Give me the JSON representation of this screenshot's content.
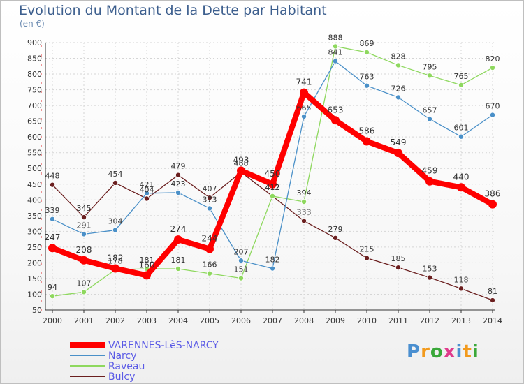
{
  "header": {
    "title": "Evolution du Montant de la Dette par Habitant",
    "subtitle": "(en €)"
  },
  "logo": {
    "text": "Proxiti"
  },
  "chart_data": {
    "type": "line",
    "title": "Evolution du Montant de la Dette par Habitant",
    "subtitle": "(en €)",
    "xlabel": "",
    "ylabel": "",
    "categories": [
      "2000",
      "2001",
      "2002",
      "2003",
      "2004",
      "2005",
      "2006",
      "2007",
      "2008",
      "2009",
      "2010",
      "2011",
      "2012",
      "2013",
      "2014"
    ],
    "ylim": [
      50,
      900
    ],
    "yticks": [
      50,
      100,
      150,
      200,
      250,
      300,
      350,
      400,
      450,
      500,
      550,
      600,
      650,
      700,
      750,
      800,
      850,
      900
    ],
    "grid": true,
    "legend_position": "bottom-left",
    "series": [
      {
        "name": "Bulcy",
        "color": "#6b1f1f",
        "values": [
          448,
          345,
          454,
          404,
          479,
          407,
          488,
          412,
          333,
          279,
          215,
          185,
          153,
          118,
          81
        ],
        "labels": [
          "448",
          "345",
          "454",
          "404",
          "479",
          "407",
          "488",
          "412",
          "333",
          "279",
          "215",
          "185",
          "153",
          "118",
          "81"
        ]
      },
      {
        "name": "Raveau",
        "color": "#8ed85e",
        "values": [
          94,
          107,
          178,
          181,
          181,
          166,
          151,
          412,
          394,
          888,
          869,
          828,
          795,
          765,
          820
        ],
        "labels": [
          "94",
          "107",
          "178",
          "181",
          "181",
          "166",
          "151",
          "412",
          "394",
          "888",
          "869",
          "828",
          "795",
          "765",
          "820"
        ]
      },
      {
        "name": "Narcy",
        "color": "#4a90c8",
        "values": [
          339,
          291,
          304,
          421,
          423,
          373,
          207,
          182,
          665,
          841,
          763,
          726,
          657,
          601,
          670
        ],
        "labels": [
          "339",
          "291",
          "304",
          "421",
          "423",
          "373",
          "207",
          "182",
          "665",
          "841",
          "763",
          "726",
          "657",
          "601",
          "670"
        ]
      },
      {
        "name": "VARENNES-LèS-NARCY",
        "color": "#ff0000",
        "values": [
          247,
          208,
          182,
          160,
          274,
          244,
          493,
          450,
          741,
          653,
          586,
          549,
          459,
          440,
          386
        ],
        "labels": [
          "247",
          "208",
          "182",
          "160",
          "274",
          "244",
          "493",
          "450",
          "741",
          "653",
          "586",
          "549",
          "459",
          "440",
          "386"
        ]
      }
    ],
    "legend_order": [
      "VARENNES-LèS-NARCY",
      "Narcy",
      "Raveau",
      "Bulcy"
    ]
  }
}
